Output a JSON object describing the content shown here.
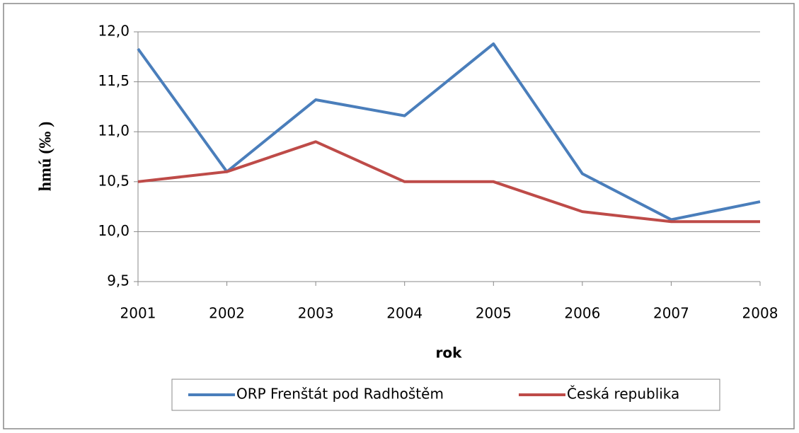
{
  "chart_data": {
    "type": "line",
    "x_label": "rok",
    "y_label": "hmú (‰ )",
    "categories": [
      "2001",
      "2002",
      "2003",
      "2004",
      "2005",
      "2006",
      "2007",
      "2008"
    ],
    "series": [
      {
        "name": "ORP Frenštát pod Radhoštěm",
        "color": "#4a7ebb",
        "values": [
          11.83,
          10.6,
          11.32,
          11.16,
          11.88,
          10.58,
          10.12,
          10.3
        ]
      },
      {
        "name": "Česká republika",
        "color": "#be4b48",
        "values": [
          10.5,
          10.6,
          10.9,
          10.5,
          10.5,
          10.2,
          10.1,
          10.1
        ]
      }
    ],
    "ylim": [
      9.5,
      12.0
    ],
    "yticks": [
      {
        "value": 9.5,
        "label": "9,5"
      },
      {
        "value": 10.0,
        "label": "10,0"
      },
      {
        "value": 10.5,
        "label": "10,5"
      },
      {
        "value": 11.0,
        "label": "11,0"
      },
      {
        "value": 11.5,
        "label": "11,5"
      },
      {
        "value": 12.0,
        "label": "12,0"
      }
    ],
    "grid": true,
    "legend": "bottom"
  }
}
